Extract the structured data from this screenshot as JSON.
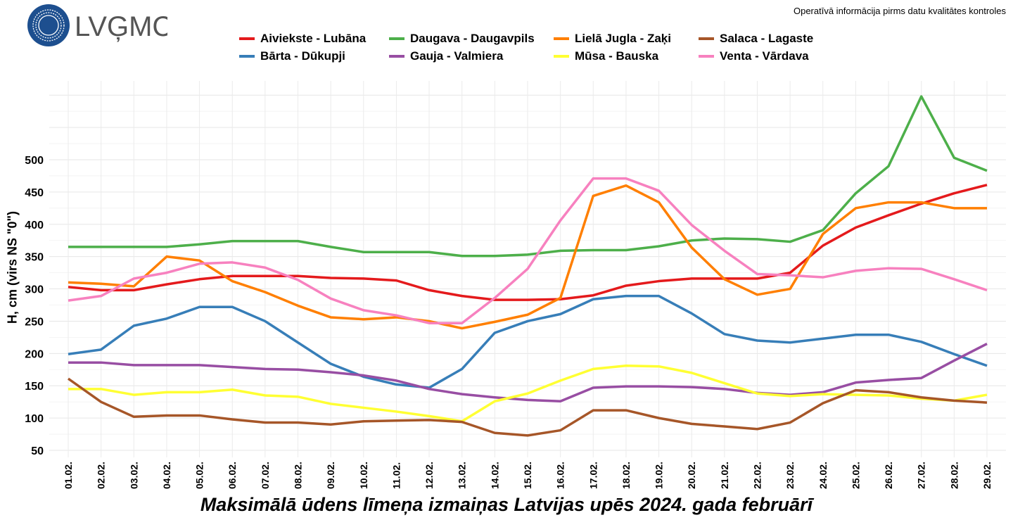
{
  "header": {
    "logo_text": "LVĢMC",
    "note": "Operatīvā informācija pirms datu kvalitātes kontroles"
  },
  "chart_data": {
    "type": "line",
    "title": "Maksimālā ūdens līmeņa izmaiņas Latvijas upēs 2024. gada februārī",
    "xlabel": "",
    "ylabel": "H, cm (virs NS \"0\")",
    "ylim": [
      40,
      622
    ],
    "yticks": [
      50,
      100,
      150,
      200,
      250,
      300,
      350,
      400,
      450,
      500
    ],
    "grid": true,
    "legend_position": "top",
    "categories": [
      "01.02.",
      "02.02.",
      "03.02.",
      "04.02.",
      "05.02.",
      "06.02.",
      "07.02.",
      "08.02.",
      "09.02.",
      "10.02.",
      "11.02.",
      "12.02.",
      "13.02.",
      "14.02.",
      "15.02.",
      "16.02.",
      "17.02.",
      "18.02.",
      "19.02.",
      "20.02.",
      "21.02.",
      "22.02.",
      "23.02.",
      "24.02.",
      "25.02.",
      "26.02.",
      "27.02.",
      "28.02.",
      "29.02."
    ],
    "series": [
      {
        "name": "Aiviekste - Lubāna",
        "color": "#e41a1c",
        "values": [
          303,
          298,
          298,
          307,
          315,
          320,
          320,
          320,
          317,
          316,
          313,
          298,
          289,
          283,
          283,
          284,
          290,
          305,
          312,
          316,
          316,
          316,
          325,
          367,
          395,
          414,
          432,
          448,
          461
        ]
      },
      {
        "name": "Bārta - Dūkupji",
        "color": "#377eb8",
        "values": [
          199,
          206,
          243,
          254,
          272,
          272,
          250,
          217,
          184,
          164,
          152,
          147,
          176,
          232,
          250,
          261,
          284,
          289,
          289,
          262,
          230,
          220,
          217,
          223,
          229,
          229,
          218,
          199,
          181
        ]
      },
      {
        "name": "Daugava - Daugavpils",
        "color": "#4daf4a",
        "values": [
          365,
          365,
          365,
          365,
          369,
          374,
          374,
          374,
          365,
          357,
          357,
          357,
          351,
          351,
          353,
          359,
          360,
          360,
          366,
          375,
          378,
          377,
          373,
          391,
          448,
          490,
          598,
          503,
          483
        ]
      },
      {
        "name": "Gauja - Valmiera",
        "color": "#984ea3",
        "values": [
          186,
          186,
          182,
          182,
          182,
          179,
          176,
          175,
          171,
          166,
          158,
          145,
          137,
          132,
          128,
          126,
          147,
          149,
          149,
          148,
          145,
          139,
          136,
          140,
          155,
          159,
          162,
          189,
          215
        ]
      },
      {
        "name": "Lielā Jugla - Zaķi",
        "color": "#ff7f00",
        "values": [
          310,
          308,
          304,
          350,
          344,
          312,
          295,
          274,
          256,
          253,
          256,
          250,
          239,
          249,
          260,
          286,
          444,
          460,
          434,
          364,
          315,
          291,
          300,
          385,
          425,
          434,
          434,
          425,
          425
        ]
      },
      {
        "name": "Mūsa - Bauska",
        "color": "#ffff33",
        "values": [
          145,
          145,
          136,
          140,
          140,
          144,
          135,
          133,
          122,
          116,
          110,
          103,
          95,
          126,
          138,
          158,
          176,
          181,
          180,
          170,
          154,
          138,
          134,
          137,
          136,
          135,
          130,
          127,
          136
        ]
      },
      {
        "name": "Salaca - Lagaste",
        "color": "#a65628",
        "values": [
          161,
          125,
          102,
          104,
          104,
          98,
          93,
          93,
          90,
          95,
          96,
          97,
          94,
          77,
          73,
          81,
          112,
          112,
          100,
          91,
          87,
          83,
          93,
          123,
          143,
          140,
          132,
          127,
          124
        ]
      },
      {
        "name": "Venta - Vārdava",
        "color": "#f781bf",
        "values": [
          282,
          289,
          316,
          325,
          339,
          341,
          333,
          314,
          285,
          267,
          259,
          247,
          247,
          286,
          331,
          406,
          471,
          471,
          452,
          399,
          359,
          323,
          321,
          318,
          328,
          332,
          331,
          315,
          298
        ]
      }
    ]
  }
}
